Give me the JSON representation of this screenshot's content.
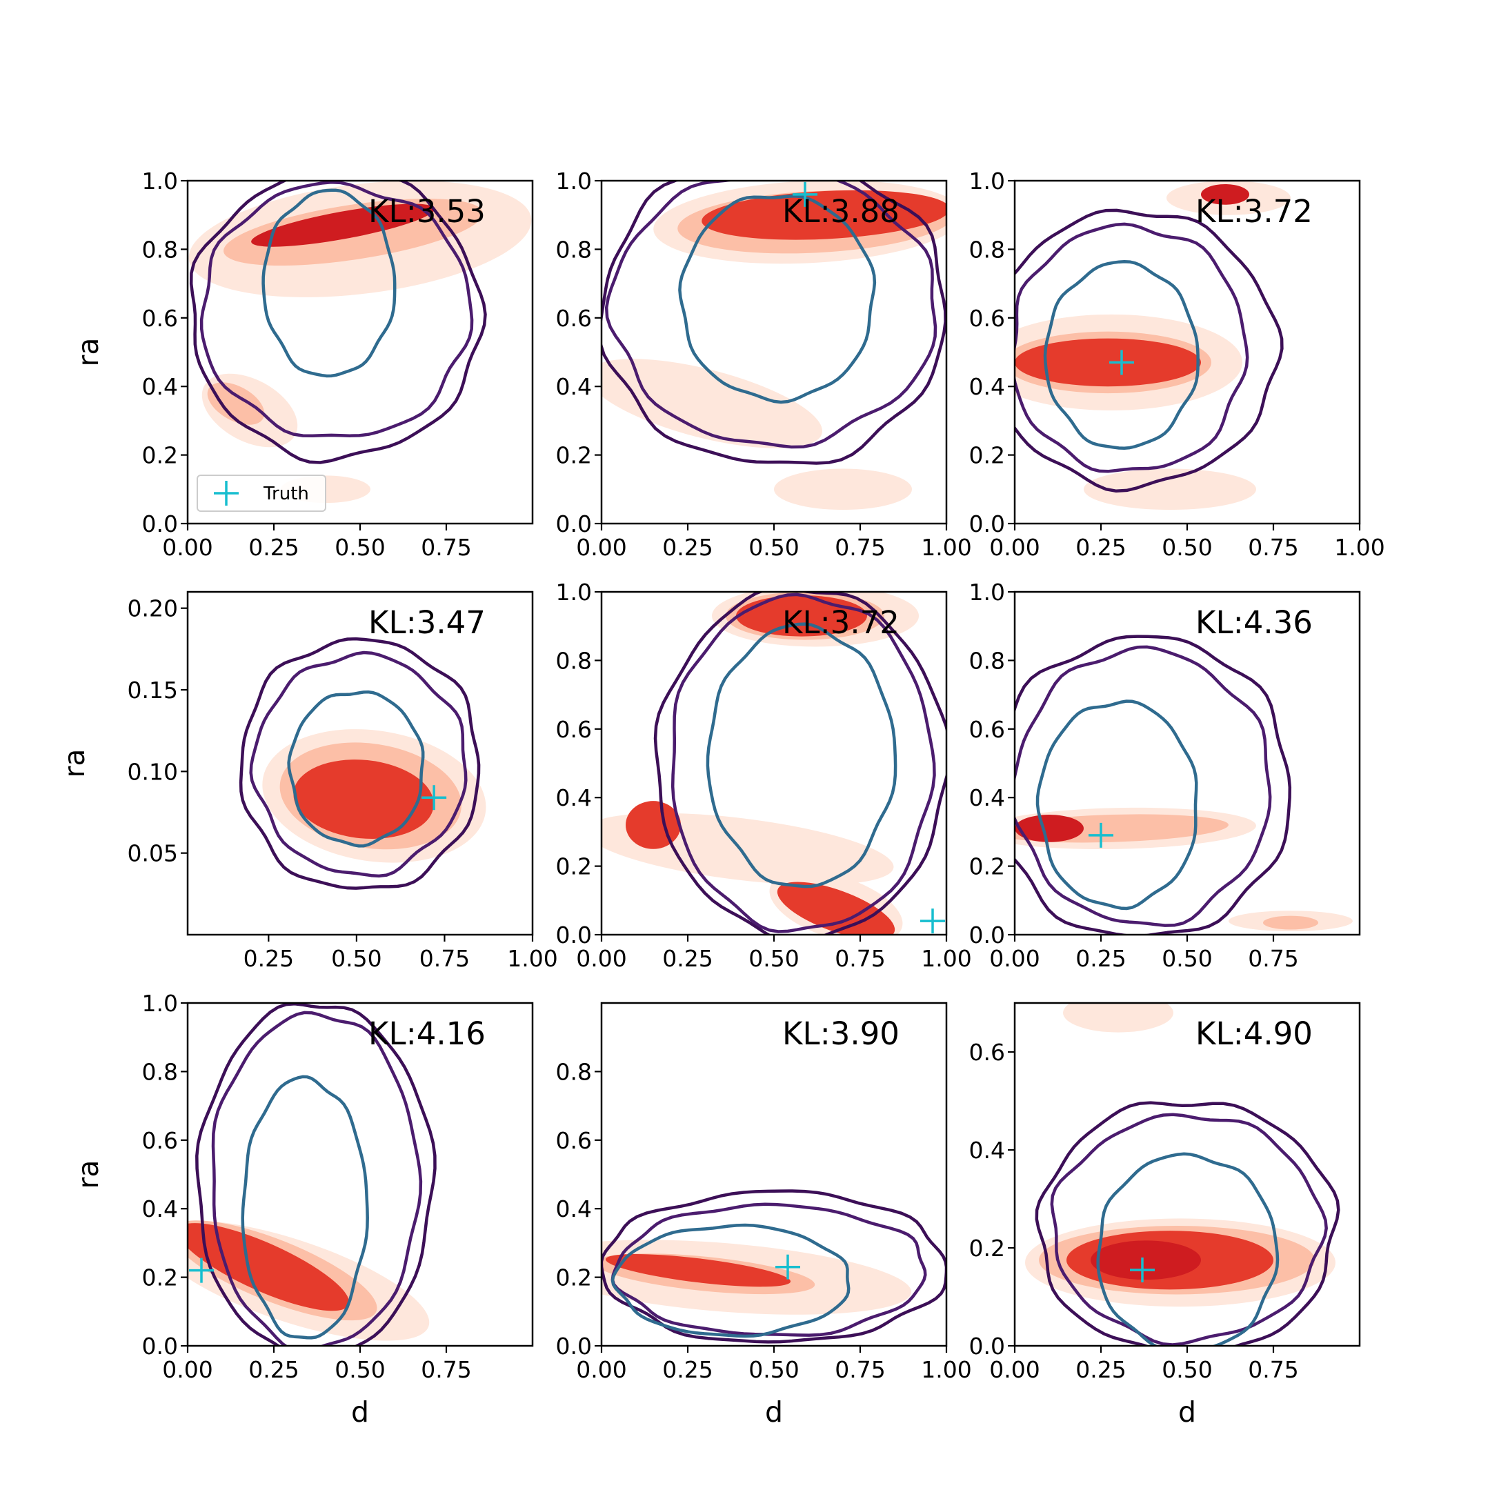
{
  "figure": {
    "legend_label": "Truth",
    "legend_position": "lower-left of first panel"
  },
  "colors": {
    "fill_light": "#fee7dc",
    "fill_mid": "#fcbfa7",
    "fill_dark": "#e53b2c",
    "fill_darkest": "#cf1c20",
    "contour_outer": "#3c0f57",
    "contour_middle": "#4b1c6e",
    "contour_inner": "#2f6b8f",
    "truth_marker": "#17becf"
  },
  "chart_data": [
    {
      "type": "contour",
      "kl": "KL:3.53",
      "xlabel": "",
      "ylabel": "ra",
      "xlim": [
        0,
        1
      ],
      "ylim": [
        0,
        1
      ],
      "xticks": [
        "0.00",
        "0.25",
        "0.50",
        "0.75"
      ],
      "xtick_values": [
        0,
        0.25,
        0.5,
        0.75
      ],
      "yticks": [
        "0.0",
        "0.2",
        "0.4",
        "0.6",
        "0.8",
        "1.0"
      ],
      "ytick_values": [
        0,
        0.2,
        0.4,
        0.6,
        0.8,
        1.0
      ],
      "truth": null,
      "blobs": [
        {
          "cx": 0.5,
          "cy": 0.83,
          "rx": 0.5,
          "ry": 0.16,
          "rot": 0.12,
          "level": 0
        },
        {
          "cx": 0.48,
          "cy": 0.85,
          "rx": 0.38,
          "ry": 0.08,
          "rot": 0.15,
          "level": 1
        },
        {
          "cx": 0.45,
          "cy": 0.87,
          "rx": 0.27,
          "ry": 0.04,
          "rot": 0.18,
          "level": 3
        },
        {
          "cx": 0.18,
          "cy": 0.33,
          "rx": 0.15,
          "ry": 0.09,
          "rot": -0.5,
          "level": 0
        },
        {
          "cx": 0.14,
          "cy": 0.35,
          "rx": 0.09,
          "ry": 0.05,
          "rot": -0.5,
          "level": 1
        },
        {
          "cx": 0.4,
          "cy": 0.1,
          "rx": 0.13,
          "ry": 0.04,
          "rot": 0,
          "level": 0
        }
      ],
      "contours": [
        {
          "cx": 0.43,
          "cy": 0.61,
          "rx": 0.42,
          "ry": 0.42,
          "wob": 0.02,
          "seed": 1,
          "level": 0
        },
        {
          "cx": 0.43,
          "cy": 0.62,
          "rx": 0.39,
          "ry": 0.37,
          "wob": 0.02,
          "seed": 2,
          "level": 1
        },
        {
          "cx": 0.41,
          "cy": 0.7,
          "rx": 0.19,
          "ry": 0.27,
          "wob": 0.015,
          "seed": 3,
          "level": 2
        }
      ]
    },
    {
      "type": "contour",
      "kl": "KL:3.88",
      "xlabel": "",
      "ylabel": "",
      "xlim": [
        0,
        1
      ],
      "ylim": [
        0,
        1
      ],
      "xticks": [
        "0.00",
        "0.25",
        "0.50",
        "0.75",
        "1.00"
      ],
      "xtick_values": [
        0,
        0.25,
        0.5,
        0.75,
        1.0
      ],
      "yticks": [
        "0.0",
        "0.2",
        "0.4",
        "0.6",
        "0.8",
        "1.0"
      ],
      "ytick_values": [
        0,
        0.2,
        0.4,
        0.6,
        0.8,
        1.0
      ],
      "truth": {
        "x": 0.59,
        "y": 0.96
      },
      "blobs": [
        {
          "cx": 0.6,
          "cy": 0.88,
          "rx": 0.45,
          "ry": 0.12,
          "rot": 0.05,
          "level": 0
        },
        {
          "cx": 0.62,
          "cy": 0.88,
          "rx": 0.4,
          "ry": 0.09,
          "rot": 0.05,
          "level": 1
        },
        {
          "cx": 0.65,
          "cy": 0.9,
          "rx": 0.36,
          "ry": 0.07,
          "rot": 0.05,
          "level": 2
        },
        {
          "cx": 0.3,
          "cy": 0.35,
          "rx": 0.35,
          "ry": 0.1,
          "rot": -0.25,
          "level": 0
        },
        {
          "cx": 0.7,
          "cy": 0.1,
          "rx": 0.2,
          "ry": 0.06,
          "rot": 0,
          "level": 0
        }
      ],
      "contours": [
        {
          "cx": 0.5,
          "cy": 0.62,
          "rx": 0.5,
          "ry": 0.45,
          "wob": 0.02,
          "seed": 4,
          "level": 0
        },
        {
          "cx": 0.5,
          "cy": 0.63,
          "rx": 0.47,
          "ry": 0.4,
          "wob": 0.02,
          "seed": 5,
          "level": 1
        },
        {
          "cx": 0.51,
          "cy": 0.66,
          "rx": 0.28,
          "ry": 0.3,
          "wob": 0.015,
          "seed": 6,
          "level": 2
        }
      ]
    },
    {
      "type": "contour",
      "kl": "KL:3.72",
      "xlabel": "",
      "ylabel": "",
      "xlim": [
        0,
        1
      ],
      "ylim": [
        0,
        1
      ],
      "xticks": [
        "0.00",
        "0.25",
        "0.50",
        "0.75",
        "1.00"
      ],
      "xtick_values": [
        0,
        0.25,
        0.5,
        0.75,
        1.0
      ],
      "yticks": [
        "0.0",
        "0.2",
        "0.4",
        "0.6",
        "0.8",
        "1.0"
      ],
      "ytick_values": [
        0,
        0.2,
        0.4,
        0.6,
        0.8,
        1.0
      ],
      "truth": {
        "x": 0.31,
        "y": 0.47
      },
      "blobs": [
        {
          "cx": 0.28,
          "cy": 0.47,
          "rx": 0.38,
          "ry": 0.14,
          "rot": 0,
          "level": 0
        },
        {
          "cx": 0.27,
          "cy": 0.47,
          "rx": 0.3,
          "ry": 0.09,
          "rot": 0,
          "level": 1
        },
        {
          "cx": 0.27,
          "cy": 0.47,
          "rx": 0.27,
          "ry": 0.07,
          "rot": 0,
          "level": 2
        },
        {
          "cx": 0.62,
          "cy": 0.95,
          "rx": 0.18,
          "ry": 0.05,
          "rot": 0,
          "level": 0
        },
        {
          "cx": 0.61,
          "cy": 0.96,
          "rx": 0.07,
          "ry": 0.03,
          "rot": 0,
          "level": 3
        },
        {
          "cx": 0.45,
          "cy": 0.1,
          "rx": 0.25,
          "ry": 0.06,
          "rot": 0,
          "level": 0
        }
      ],
      "contours": [
        {
          "cx": 0.34,
          "cy": 0.51,
          "rx": 0.42,
          "ry": 0.4,
          "wob": 0.02,
          "seed": 7,
          "level": 0
        },
        {
          "cx": 0.33,
          "cy": 0.51,
          "rx": 0.34,
          "ry": 0.36,
          "wob": 0.02,
          "seed": 8,
          "level": 1
        },
        {
          "cx": 0.31,
          "cy": 0.49,
          "rx": 0.22,
          "ry": 0.27,
          "wob": 0.015,
          "seed": 9,
          "level": 2
        }
      ]
    },
    {
      "type": "contour",
      "kl": "KL:3.47",
      "xlabel": "",
      "ylabel": "ra",
      "xlim": [
        0.02,
        1.0
      ],
      "ylim": [
        0,
        0.21
      ],
      "xticks": [
        "0.25",
        "0.50",
        "0.75",
        "1.00"
      ],
      "xtick_values": [
        0.25,
        0.5,
        0.75,
        1.0
      ],
      "yticks": [
        "0.05",
        "0.10",
        "0.15",
        "0.20"
      ],
      "ytick_values": [
        0.05,
        0.1,
        0.15,
        0.2
      ],
      "truth": {
        "x": 0.72,
        "y": 0.084
      },
      "blobs": [
        {
          "cx": 0.55,
          "cy": 0.085,
          "rx": 0.32,
          "ry": 0.04,
          "rot": -0.15,
          "level": 0
        },
        {
          "cx": 0.54,
          "cy": 0.085,
          "rx": 0.26,
          "ry": 0.032,
          "rot": -0.15,
          "level": 1
        },
        {
          "cx": 0.52,
          "cy": 0.083,
          "rx": 0.2,
          "ry": 0.024,
          "rot": -0.1,
          "level": 2
        }
      ],
      "contours": [
        {
          "cx": 0.51,
          "cy": 0.104,
          "rx": 0.34,
          "ry": 0.077,
          "wob": 0.02,
          "seed": 10,
          "level": 0
        },
        {
          "cx": 0.51,
          "cy": 0.104,
          "rx": 0.3,
          "ry": 0.067,
          "wob": 0.02,
          "seed": 11,
          "level": 1
        },
        {
          "cx": 0.5,
          "cy": 0.102,
          "rx": 0.19,
          "ry": 0.047,
          "wob": 0.015,
          "seed": 12,
          "level": 2
        }
      ]
    },
    {
      "type": "contour",
      "kl": "KL:3.72",
      "xlabel": "",
      "ylabel": "",
      "xlim": [
        0,
        1
      ],
      "ylim": [
        0,
        1
      ],
      "xticks": [
        "0.00",
        "0.25",
        "0.50",
        "0.75",
        "1.00"
      ],
      "xtick_values": [
        0,
        0.25,
        0.5,
        0.75,
        1.0
      ],
      "yticks": [
        "0.0",
        "0.2",
        "0.4",
        "0.6",
        "0.8",
        "1.0"
      ],
      "ytick_values": [
        0,
        0.2,
        0.4,
        0.6,
        0.8,
        1.0
      ],
      "truth": {
        "x": 0.96,
        "y": 0.04
      },
      "blobs": [
        {
          "cx": 0.62,
          "cy": 0.93,
          "rx": 0.3,
          "ry": 0.09,
          "rot": 0,
          "level": 0
        },
        {
          "cx": 0.59,
          "cy": 0.93,
          "rx": 0.23,
          "ry": 0.07,
          "rot": 0,
          "level": 1
        },
        {
          "cx": 0.58,
          "cy": 0.93,
          "rx": 0.19,
          "ry": 0.06,
          "rot": 0,
          "level": 2
        },
        {
          "cx": 0.4,
          "cy": 0.25,
          "rx": 0.45,
          "ry": 0.09,
          "rot": -0.12,
          "level": 0
        },
        {
          "cx": 0.15,
          "cy": 0.32,
          "rx": 0.08,
          "ry": 0.07,
          "rot": 0,
          "level": 2
        },
        {
          "cx": 0.68,
          "cy": 0.08,
          "rx": 0.2,
          "ry": 0.09,
          "rot": -0.3,
          "level": 0
        },
        {
          "cx": 0.68,
          "cy": 0.07,
          "rx": 0.18,
          "ry": 0.06,
          "rot": -0.35,
          "level": 2
        }
      ],
      "contours": [
        {
          "cx": 0.58,
          "cy": 0.5,
          "rx": 0.42,
          "ry": 0.51,
          "wob": 0.015,
          "seed": 13,
          "level": 0
        },
        {
          "cx": 0.58,
          "cy": 0.5,
          "rx": 0.38,
          "ry": 0.49,
          "wob": 0.015,
          "seed": 14,
          "level": 1
        },
        {
          "cx": 0.58,
          "cy": 0.52,
          "rx": 0.27,
          "ry": 0.38,
          "wob": 0.015,
          "seed": 15,
          "level": 2
        }
      ]
    },
    {
      "type": "contour",
      "kl": "KL:4.36",
      "xlabel": "",
      "ylabel": "",
      "xlim": [
        0,
        1
      ],
      "ylim": [
        0,
        1
      ],
      "xticks": [
        "0.00",
        "0.25",
        "0.50",
        "0.75"
      ],
      "xtick_values": [
        0,
        0.25,
        0.5,
        0.75
      ],
      "yticks": [
        "0.0",
        "0.2",
        "0.4",
        "0.6",
        "0.8",
        "1.0"
      ],
      "ytick_values": [
        0,
        0.2,
        0.4,
        0.6,
        0.8,
        1.0
      ],
      "truth": {
        "x": 0.25,
        "y": 0.29
      },
      "blobs": [
        {
          "cx": 0.3,
          "cy": 0.31,
          "rx": 0.4,
          "ry": 0.06,
          "rot": 0.02,
          "level": 0
        },
        {
          "cx": 0.28,
          "cy": 0.31,
          "rx": 0.34,
          "ry": 0.04,
          "rot": 0.03,
          "level": 1
        },
        {
          "cx": 0.1,
          "cy": 0.31,
          "rx": 0.1,
          "ry": 0.04,
          "rot": 0,
          "level": 3
        },
        {
          "cx": 0.8,
          "cy": 0.04,
          "rx": 0.18,
          "ry": 0.03,
          "rot": 0,
          "level": 0
        },
        {
          "cx": 0.8,
          "cy": 0.035,
          "rx": 0.08,
          "ry": 0.02,
          "rot": 0,
          "level": 1
        }
      ],
      "contours": [
        {
          "cx": 0.37,
          "cy": 0.43,
          "rx": 0.43,
          "ry": 0.44,
          "wob": 0.02,
          "seed": 16,
          "level": 0
        },
        {
          "cx": 0.37,
          "cy": 0.43,
          "rx": 0.37,
          "ry": 0.4,
          "wob": 0.02,
          "seed": 17,
          "level": 1
        },
        {
          "cx": 0.3,
          "cy": 0.38,
          "rx": 0.23,
          "ry": 0.3,
          "wob": 0.015,
          "seed": 18,
          "level": 2
        }
      ]
    },
    {
      "type": "contour",
      "kl": "KL:4.16",
      "xlabel": "d",
      "ylabel": "ra",
      "xlim": [
        0,
        1
      ],
      "ylim": [
        0,
        1
      ],
      "xticks": [
        "0.00",
        "0.25",
        "0.50",
        "0.75"
      ],
      "xtick_values": [
        0,
        0.25,
        0.5,
        0.75
      ],
      "yticks": [
        "0.0",
        "0.2",
        "0.4",
        "0.6",
        "0.8",
        "1.0"
      ],
      "ytick_values": [
        0,
        0.2,
        0.4,
        0.6,
        0.8,
        1.0
      ],
      "truth": {
        "x": 0.04,
        "y": 0.22
      },
      "blobs": [
        {
          "cx": 0.3,
          "cy": 0.19,
          "rx": 0.42,
          "ry": 0.12,
          "rot": -0.32,
          "level": 0
        },
        {
          "cx": 0.25,
          "cy": 0.22,
          "rx": 0.32,
          "ry": 0.09,
          "rot": -0.38,
          "level": 1
        },
        {
          "cx": 0.22,
          "cy": 0.23,
          "rx": 0.27,
          "ry": 0.07,
          "rot": -0.42,
          "level": 2
        }
      ],
      "contours": [
        {
          "cx": 0.37,
          "cy": 0.48,
          "rx": 0.34,
          "ry": 0.52,
          "wob": 0.015,
          "seed": 19,
          "level": 0
        },
        {
          "cx": 0.37,
          "cy": 0.48,
          "rx": 0.3,
          "ry": 0.49,
          "wob": 0.015,
          "seed": 20,
          "level": 1
        },
        {
          "cx": 0.34,
          "cy": 0.4,
          "rx": 0.18,
          "ry": 0.38,
          "wob": 0.015,
          "seed": 21,
          "level": 2
        }
      ]
    },
    {
      "type": "contour",
      "kl": "KL:3.90",
      "xlabel": "d",
      "ylabel": "",
      "xlim": [
        0,
        1
      ],
      "ylim": [
        0,
        1
      ],
      "xticks": [
        "0.00",
        "0.25",
        "0.50",
        "0.75",
        "1.00"
      ],
      "xtick_values": [
        0,
        0.25,
        0.5,
        0.75,
        1.0
      ],
      "yticks": [
        "0.0",
        "0.2",
        "0.4",
        "0.6",
        "0.8"
      ],
      "ytick_values": [
        0,
        0.2,
        0.4,
        0.6,
        0.8
      ],
      "truth": {
        "x": 0.54,
        "y": 0.23
      },
      "blobs": [
        {
          "cx": 0.35,
          "cy": 0.2,
          "rx": 0.55,
          "ry": 0.1,
          "rot": -0.08,
          "level": 0
        },
        {
          "cx": 0.3,
          "cy": 0.21,
          "rx": 0.32,
          "ry": 0.05,
          "rot": -0.1,
          "level": 1
        },
        {
          "cx": 0.28,
          "cy": 0.22,
          "rx": 0.27,
          "ry": 0.035,
          "rot": -0.12,
          "level": 2
        }
      ],
      "contours": [
        {
          "cx": 0.5,
          "cy": 0.23,
          "rx": 0.5,
          "ry": 0.22,
          "wob": 0.02,
          "seed": 22,
          "level": 0
        },
        {
          "cx": 0.49,
          "cy": 0.22,
          "rx": 0.45,
          "ry": 0.19,
          "wob": 0.02,
          "seed": 23,
          "level": 1
        },
        {
          "cx": 0.38,
          "cy": 0.19,
          "rx": 0.34,
          "ry": 0.16,
          "wob": 0.015,
          "seed": 24,
          "level": 2
        }
      ]
    },
    {
      "type": "contour",
      "kl": "KL:4.90",
      "xlabel": "d",
      "ylabel": "",
      "xlim": [
        0,
        1
      ],
      "ylim": [
        0,
        0.7
      ],
      "xticks": [
        "0.00",
        "0.25",
        "0.50",
        "0.75"
      ],
      "xtick_values": [
        0,
        0.25,
        0.5,
        0.75
      ],
      "yticks": [
        "0.0",
        "0.2",
        "0.4",
        "0.6"
      ],
      "ytick_values": [
        0,
        0.2,
        0.4,
        0.6
      ],
      "truth": {
        "x": 0.37,
        "y": 0.155
      },
      "blobs": [
        {
          "cx": 0.48,
          "cy": 0.17,
          "rx": 0.45,
          "ry": 0.09,
          "rot": 0,
          "level": 0
        },
        {
          "cx": 0.47,
          "cy": 0.175,
          "rx": 0.4,
          "ry": 0.07,
          "rot": 0,
          "level": 1
        },
        {
          "cx": 0.45,
          "cy": 0.175,
          "rx": 0.3,
          "ry": 0.06,
          "rot": 0,
          "level": 2
        },
        {
          "cx": 0.38,
          "cy": 0.175,
          "rx": 0.16,
          "ry": 0.04,
          "rot": 0,
          "level": 3
        },
        {
          "cx": 0.3,
          "cy": 0.68,
          "rx": 0.16,
          "ry": 0.04,
          "rot": 0,
          "level": 0
        }
      ],
      "contours": [
        {
          "cx": 0.5,
          "cy": 0.24,
          "rx": 0.43,
          "ry": 0.26,
          "wob": 0.02,
          "seed": 25,
          "level": 0
        },
        {
          "cx": 0.5,
          "cy": 0.24,
          "rx": 0.39,
          "ry": 0.23,
          "wob": 0.02,
          "seed": 26,
          "level": 1
        },
        {
          "cx": 0.5,
          "cy": 0.19,
          "rx": 0.26,
          "ry": 0.2,
          "wob": 0.015,
          "seed": 27,
          "level": 2
        }
      ]
    }
  ]
}
